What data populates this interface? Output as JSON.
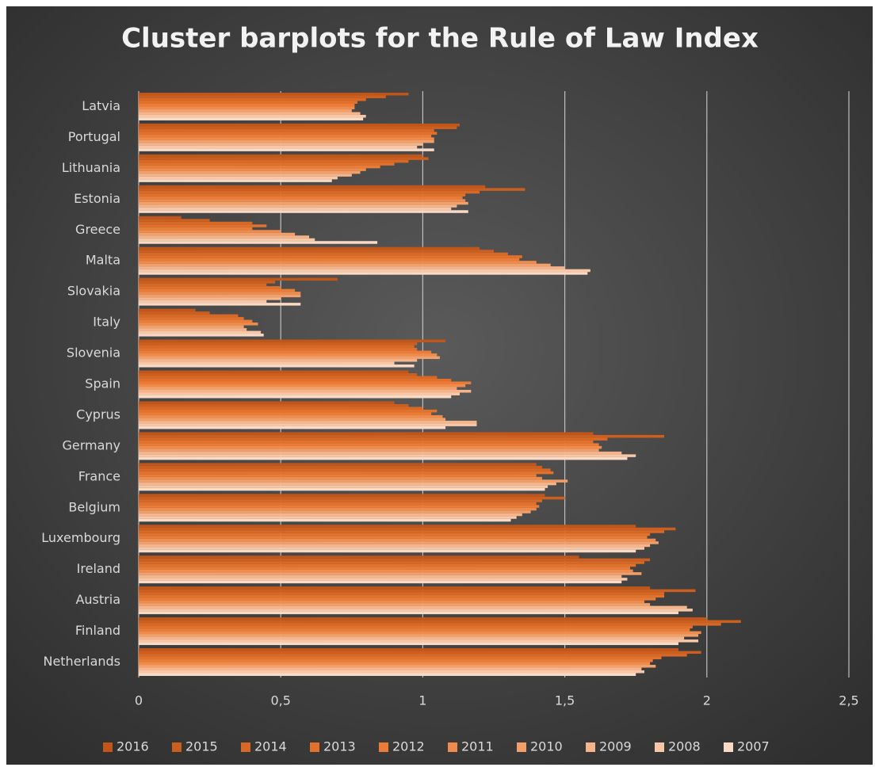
{
  "chart_data": {
    "type": "hbar",
    "title": "Cluster barplots for the Rule of Law Index",
    "categories": [
      "Latvia",
      "Portugal",
      "Lithuania",
      "Estonia",
      "Greece",
      "Malta",
      "Slovakia",
      "Italy",
      "Slovenia",
      "Spain",
      "Cyprus",
      "Germany",
      "France",
      "Belgium",
      "Luxembourg",
      "Ireland",
      "Austria",
      "Finland",
      "Netherlands"
    ],
    "series": [
      {
        "name": "2016",
        "color": "#c0561a",
        "values": [
          0.95,
          1.13,
          1.0,
          1.22,
          0.15,
          1.2,
          0.7,
          0.2,
          1.08,
          0.95,
          0.9,
          1.6,
          1.4,
          1.43,
          1.75,
          1.55,
          1.8,
          2.0,
          1.9
        ]
      },
      {
        "name": "2015",
        "color": "#cc5f1f",
        "values": [
          0.87,
          1.12,
          1.02,
          1.36,
          0.25,
          1.25,
          0.48,
          0.25,
          0.98,
          0.98,
          0.95,
          1.85,
          1.42,
          1.5,
          1.89,
          1.8,
          1.96,
          2.12,
          1.98
        ]
      },
      {
        "name": "2014",
        "color": "#d86826",
        "values": [
          0.8,
          1.04,
          0.95,
          1.2,
          0.4,
          1.3,
          0.45,
          0.35,
          0.97,
          1.05,
          1.0,
          1.65,
          1.45,
          1.42,
          1.85,
          1.78,
          1.85,
          2.05,
          1.93
        ]
      },
      {
        "name": "2013",
        "color": "#e2712b",
        "values": [
          0.77,
          1.05,
          0.9,
          1.15,
          0.45,
          1.35,
          0.5,
          0.37,
          0.98,
          1.1,
          1.05,
          1.6,
          1.46,
          1.4,
          1.8,
          1.75,
          1.85,
          1.95,
          1.84
        ]
      },
      {
        "name": "2012",
        "color": "#ea7c37",
        "values": [
          0.76,
          1.03,
          0.85,
          1.14,
          0.4,
          1.34,
          0.55,
          0.4,
          1.03,
          1.17,
          1.03,
          1.62,
          1.4,
          1.41,
          1.79,
          1.73,
          1.82,
          1.94,
          1.81
        ]
      },
      {
        "name": "2011",
        "color": "#ef8c4d",
        "values": [
          0.76,
          1.04,
          0.8,
          1.15,
          0.5,
          1.4,
          0.57,
          0.42,
          1.05,
          1.15,
          1.07,
          1.63,
          1.42,
          1.4,
          1.82,
          1.74,
          1.78,
          1.98,
          1.8
        ]
      },
      {
        "name": "2010",
        "color": "#f2a06b",
        "values": [
          0.75,
          1.04,
          0.78,
          1.16,
          0.55,
          1.45,
          0.57,
          0.37,
          1.06,
          1.12,
          1.08,
          1.62,
          1.51,
          1.38,
          1.83,
          1.77,
          1.8,
          1.97,
          1.82
        ]
      },
      {
        "name": "2009",
        "color": "#f5b48a",
        "values": [
          0.78,
          1.0,
          0.75,
          1.12,
          0.6,
          1.5,
          0.5,
          0.38,
          0.98,
          1.17,
          1.19,
          1.7,
          1.47,
          1.35,
          1.8,
          1.7,
          1.93,
          1.92,
          1.77
        ]
      },
      {
        "name": "2008",
        "color": "#f8c7a8",
        "values": [
          0.8,
          0.98,
          0.7,
          1.1,
          0.62,
          1.59,
          0.45,
          0.43,
          0.9,
          1.13,
          1.19,
          1.75,
          1.44,
          1.33,
          1.78,
          1.72,
          1.95,
          1.97,
          1.78
        ]
      },
      {
        "name": "2007",
        "color": "#fbdac5",
        "values": [
          0.79,
          1.04,
          0.68,
          1.16,
          0.84,
          1.58,
          0.57,
          0.44,
          0.97,
          1.1,
          1.08,
          1.72,
          1.43,
          1.31,
          1.75,
          1.7,
          1.9,
          1.9,
          1.75
        ]
      }
    ],
    "xlim": [
      0,
      2.5
    ],
    "xticks": [
      0,
      {
        "value": 0.5,
        "label": "0,5"
      },
      1,
      {
        "value": 1.5,
        "label": "1,5"
      },
      2,
      {
        "value": 2.5,
        "label": "2,5"
      }
    ],
    "grid": true,
    "legend": "bottom"
  }
}
